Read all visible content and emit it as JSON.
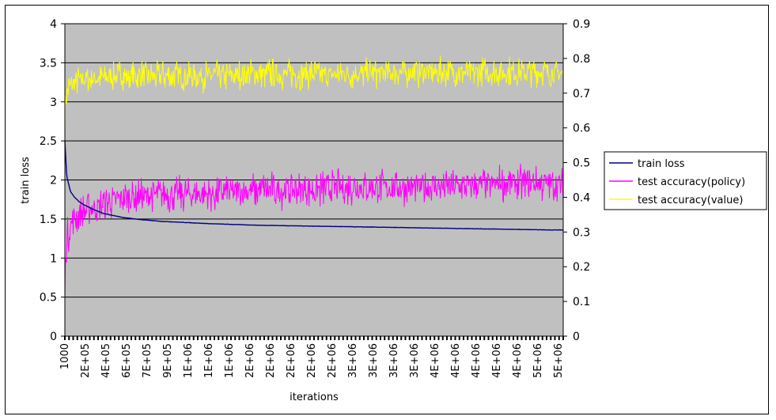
{
  "chart_data": {
    "type": "line",
    "xlabel": "iterations",
    "ylabel": "train loss",
    "ylim": [
      0,
      4
    ],
    "y2lim": [
      0,
      0.9
    ],
    "grid": true,
    "legend_position": "right",
    "y_ticks": [
      "0",
      "0.5",
      "1",
      "1.5",
      "2",
      "2.5",
      "3",
      "3.5",
      "4"
    ],
    "y2_ticks": [
      "0",
      "0.1",
      "0.2",
      "0.3",
      "0.4",
      "0.5",
      "0.6",
      "0.7",
      "0.8",
      "0.9"
    ],
    "x_tick_labels": [
      "1000",
      "2E+05",
      "4E+05",
      "6E+05",
      "7E+05",
      "9E+05",
      "1E+06",
      "1E+06",
      "1E+06",
      "2E+06",
      "2E+06",
      "2E+06",
      "2E+06",
      "2E+06",
      "3E+06",
      "3E+06",
      "3E+06",
      "3E+06",
      "4E+06",
      "4E+06",
      "4E+06",
      "4E+06",
      "4E+06",
      "5E+06",
      "5E+06"
    ],
    "x_range": [
      1000,
      5150000
    ],
    "colors": {
      "plot_bg": "#c0c0c0",
      "train_loss": "#000080",
      "policy": "#ff00ff",
      "value": "#ffff00"
    },
    "series": [
      {
        "name": "train loss",
        "axis": "left",
        "x": [
          1000,
          20000,
          60000,
          100000,
          150000,
          200000,
          300000,
          400000,
          600000,
          800000,
          1000000,
          1500000,
          2000000,
          2500000,
          3000000,
          3500000,
          4000000,
          4500000,
          5000000,
          5150000
        ],
        "values": [
          2.5,
          2.05,
          1.85,
          1.78,
          1.72,
          1.68,
          1.62,
          1.57,
          1.52,
          1.49,
          1.47,
          1.44,
          1.42,
          1.41,
          1.4,
          1.39,
          1.38,
          1.37,
          1.36,
          1.36
        ]
      },
      {
        "name": "test accuracy(policy)",
        "axis": "right",
        "x": [
          1000,
          10000,
          30000,
          60000,
          100000,
          200000,
          300000,
          400000,
          600000,
          800000,
          1000000,
          1500000,
          2000000,
          2500000,
          3000000,
          3500000,
          4000000,
          4500000,
          5000000,
          5150000
        ],
        "values": [
          0.12,
          0.24,
          0.29,
          0.32,
          0.34,
          0.36,
          0.37,
          0.38,
          0.4,
          0.4,
          0.41,
          0.41,
          0.42,
          0.42,
          0.43,
          0.43,
          0.43,
          0.44,
          0.44,
          0.43
        ]
      },
      {
        "name": "test accuracy(value)",
        "axis": "right",
        "x": [
          1000,
          10000,
          30000,
          60000,
          100000,
          200000,
          400000,
          600000,
          1000000,
          1500000,
          2000000,
          2500000,
          3000000,
          3500000,
          4000000,
          4500000,
          5000000,
          5150000
        ],
        "values": [
          0.63,
          0.68,
          0.71,
          0.72,
          0.73,
          0.74,
          0.745,
          0.75,
          0.75,
          0.75,
          0.755,
          0.755,
          0.755,
          0.76,
          0.76,
          0.76,
          0.76,
          0.755
        ]
      }
    ]
  }
}
